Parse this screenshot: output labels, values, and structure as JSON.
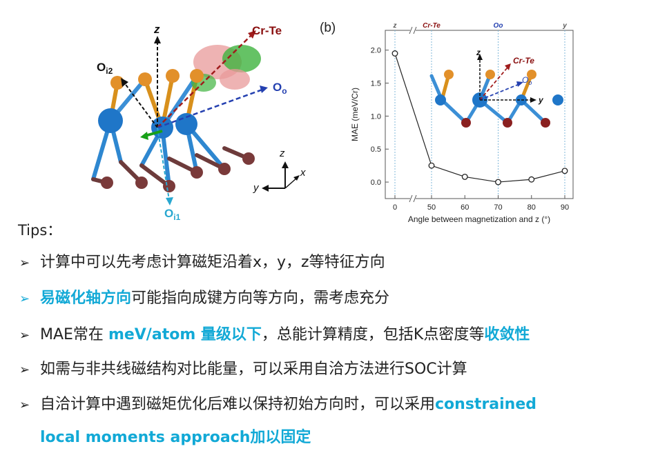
{
  "figure_a": {
    "label_z": "z",
    "label_crte": "Cr-Te",
    "label_oi2": "O",
    "label_oi2_sub": "i2",
    "label_oo": "O",
    "label_oo_sub": "o",
    "label_oi1": "O",
    "label_oi1_sub": "i1",
    "axes_z": "z",
    "axes_x": "x",
    "axes_y": "y"
  },
  "figure_b": {
    "panel_label": "(b)",
    "top_labels": [
      "z",
      "Cr-Te",
      "Oo",
      "y"
    ],
    "inset": {
      "z": "z",
      "crte": "Cr-Te",
      "oo": "O",
      "oo_sub": "o",
      "y": "y"
    }
  },
  "chart_data": {
    "type": "scatter",
    "title": "",
    "xlabel": "Angle between magnetization and z (°)",
    "ylabel": "MAE (meV/Cr)",
    "x": [
      0,
      50,
      60,
      70,
      80,
      90
    ],
    "y": [
      1.95,
      0.25,
      0.08,
      0.0,
      0.04,
      0.17
    ],
    "xticks": [
      "0",
      "50",
      "60",
      "70",
      "80",
      "90"
    ],
    "yticks": [
      "0.0",
      "0.5",
      "1.0",
      "1.5",
      "2.0"
    ],
    "ylim": [
      -0.25,
      2.3
    ],
    "axis_break": "between 0 and 50",
    "line": true,
    "marker": "open-circle",
    "vertical_dotted_lines_at": [
      0,
      50,
      70,
      90
    ]
  },
  "tips": {
    "title": "Tips：",
    "items": [
      {
        "parts": [
          {
            "text": "计算中可以先考虑计算磁矩沿着x，y，z等特征方向",
            "style": "plain"
          }
        ]
      },
      {
        "parts": [
          {
            "text": "易磁化轴方向",
            "style": "cyan"
          },
          {
            "text": "可能指向成键方向等方向，需考虑充分",
            "style": "plain"
          }
        ]
      },
      {
        "parts": [
          {
            "text": "MAE常在 ",
            "style": "plain"
          },
          {
            "text": "meV/atom 量级以下",
            "style": "cyan"
          },
          {
            "text": "，总能计算精度，包括K点密度等",
            "style": "plain"
          },
          {
            "text": "收敛性",
            "style": "cyan"
          }
        ]
      },
      {
        "parts": [
          {
            "text": "如需与非共线磁结构对比能量，可以采用自洽方法进行SOC计算",
            "style": "plain"
          }
        ]
      },
      {
        "parts": [
          {
            "text": "自洽计算中遇到磁矩优化后难以保持初始方向时，可以采用",
            "style": "plain"
          },
          {
            "text": "constrained",
            "style": "cyan"
          }
        ]
      },
      {
        "parts": [
          {
            "text": "local moments approach加以固定",
            "style": "cyan"
          }
        ]
      }
    ]
  }
}
